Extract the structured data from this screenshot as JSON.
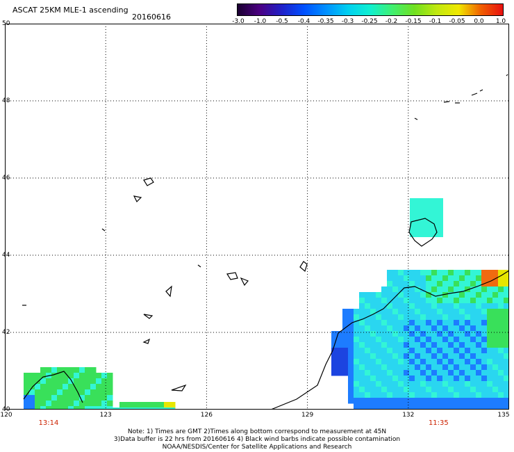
{
  "header": {
    "title": "ASCAT 25KM MLE-1 ascending",
    "date": "20160616"
  },
  "colorbar": {
    "ticks": [
      "-3.0",
      "-1.0",
      "-0.5",
      "-0.4",
      "-0.35",
      "-0.3",
      "-0.25",
      "-0.2",
      "-0.15",
      "-0.1",
      "-0.05",
      "0.0",
      "1.0"
    ],
    "colors": [
      "#1a0030",
      "#4b0082",
      "#2020c8",
      "#0050ff",
      "#0090ff",
      "#00d0f0",
      "#10f0d0",
      "#40f070",
      "#70e020",
      "#c0e810",
      "#f0e800",
      "#f06000",
      "#e81010"
    ]
  },
  "map": {
    "lat_labels": [
      "50",
      "48",
      "46",
      "44",
      "42",
      "40"
    ],
    "lat_values": [
      50,
      48,
      46,
      44,
      42,
      40
    ],
    "lon_labels": [
      "120",
      "123",
      "126",
      "129",
      "132",
      "135"
    ],
    "lon_values": [
      120,
      123,
      126,
      129,
      132,
      135
    ],
    "lon_range": [
      120,
      135
    ],
    "lat_range": [
      40,
      50
    ],
    "times": [
      {
        "label": "13:14",
        "lon": 121.3
      },
      {
        "label": "11:35",
        "lon": 132.9
      }
    ],
    "colors": {
      "grid": "#000000",
      "coast": "#000000",
      "cyan": "#33f5d6",
      "green": "#39e05a",
      "lightblue": "#2ad6f0",
      "blue": "#1d7cff",
      "darkblue": "#1c44e0",
      "yellow": "#e6e600",
      "orange": "#f06a10"
    }
  },
  "notes": {
    "line1": "Note: 1) Times are GMT 2)Times along bottom correspond to measurement at 45N",
    "line2": "3)Data buffer is 22 hrs from 20160616 4) Black wind barbs indicate possible contamination",
    "line3": "NOAA/NESDIS/Center for Satellite Applications and Research"
  }
}
